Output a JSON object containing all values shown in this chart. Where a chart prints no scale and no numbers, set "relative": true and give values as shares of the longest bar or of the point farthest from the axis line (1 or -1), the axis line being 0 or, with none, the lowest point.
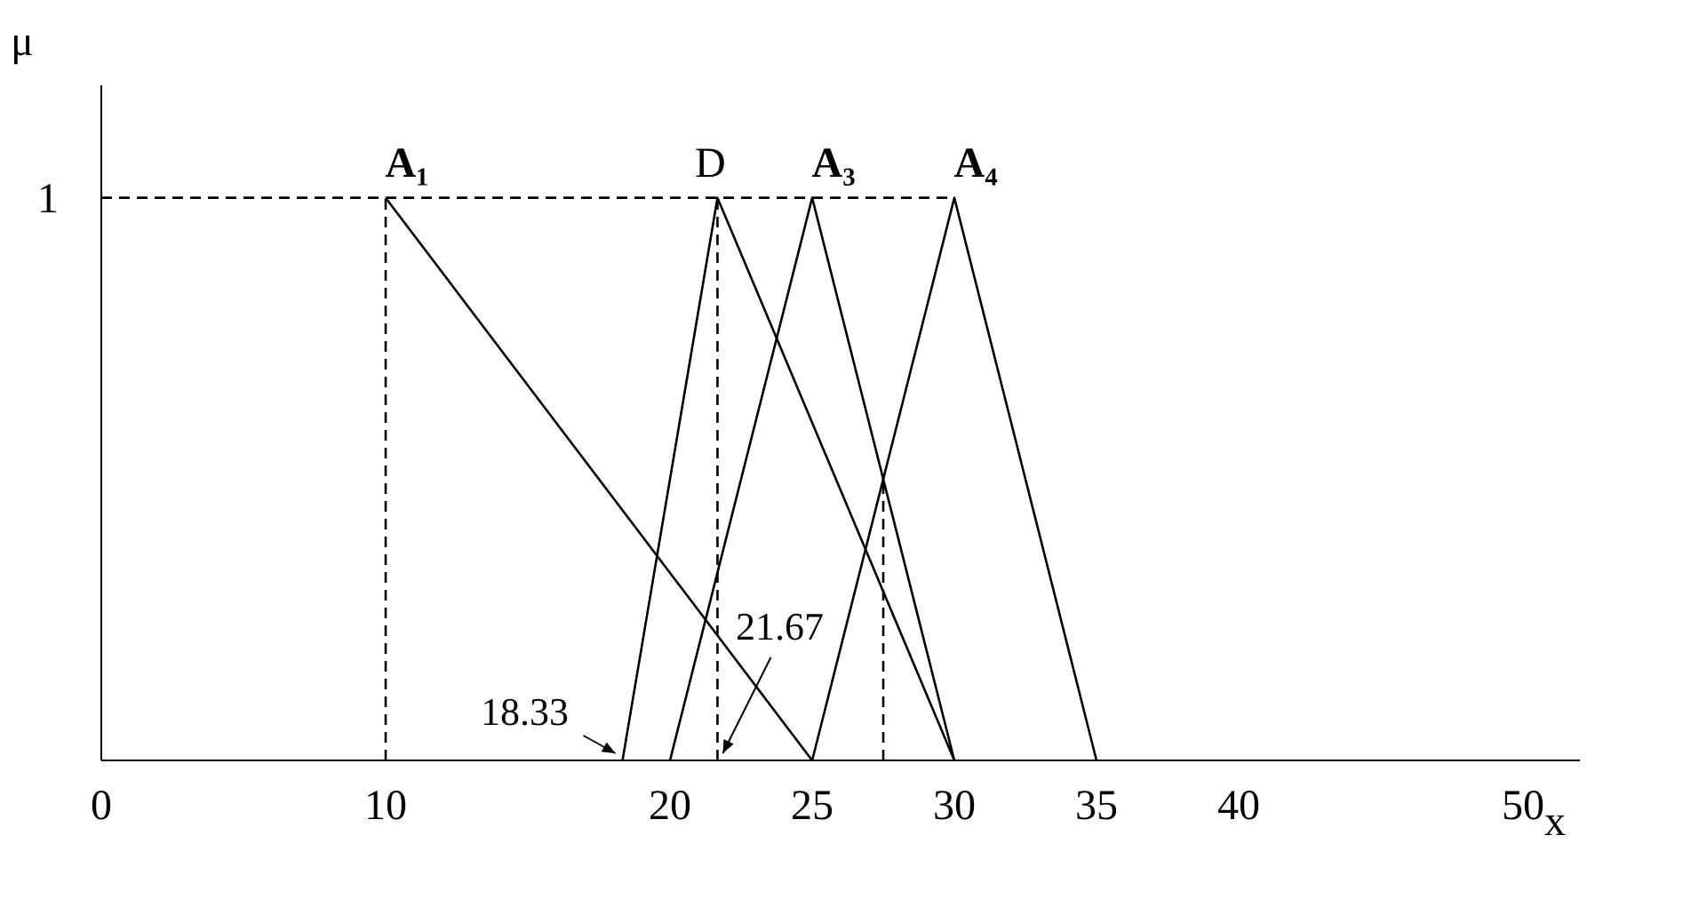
{
  "chart_data": {
    "type": "line",
    "xlabel": "x",
    "ylabel": "μ",
    "xlim": [
      0,
      52
    ],
    "xticks": [
      0,
      10,
      20,
      25,
      30,
      35,
      40,
      50
    ],
    "relative": true,
    "grid": false,
    "legend": false,
    "marker": "none",
    "line_style": "solid",
    "series": [
      {
        "name": "A₁",
        "color": "#000000",
        "x": [
          10,
          25
        ],
        "values": [
          1,
          0
        ]
      },
      {
        "name": "D",
        "color": "#000000",
        "x": [
          18.33,
          21.67,
          30
        ],
        "values": [
          0,
          1,
          0
        ]
      },
      {
        "name": "A₃",
        "color": "#000000",
        "x": [
          20,
          25,
          30
        ],
        "values": [
          0,
          1,
          0
        ]
      },
      {
        "name": "A₄",
        "color": "#000000",
        "x": [
          25,
          30,
          35
        ],
        "values": [
          0,
          1,
          0
        ]
      },
      {
        "color": "#000000",
        "line_style": "dashed",
        "x": [
          0,
          30
        ],
        "values": [
          1,
          1
        ]
      },
      {
        "color": "#000000",
        "line_style": "dashed",
        "x": [
          10,
          10
        ],
        "values": [
          0,
          1
        ]
      },
      {
        "color": "#000000",
        "line_style": "dashed",
        "x": [
          21.67,
          21.67
        ],
        "values": [
          0,
          1
        ]
      },
      {
        "color": "#000000",
        "line_style": "dashed",
        "x": [
          27.5,
          27.5
        ],
        "values": [
          0,
          0.5
        ]
      }
    ],
    "annotations": [
      "1",
      {
        "text": "18.33",
        "x": 18.33,
        "y": 0
      },
      {
        "text": "21.67",
        "x": 21.67,
        "y": 0
      }
    ]
  }
}
